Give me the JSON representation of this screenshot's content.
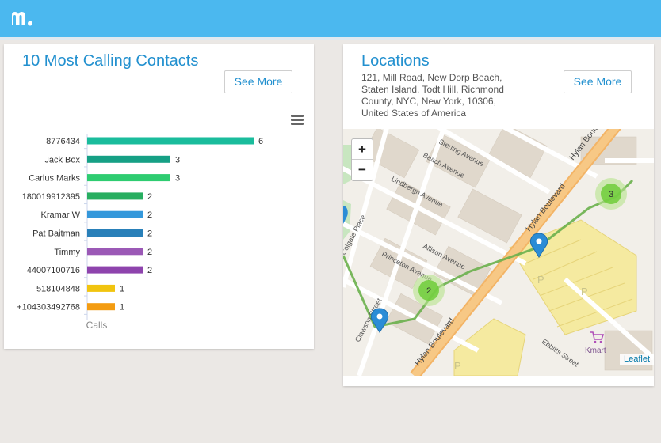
{
  "calls_card": {
    "title": "10 Most Calling Contacts",
    "see_more": "See More",
    "chart_data": {
      "type": "bar",
      "orientation": "horizontal",
      "categories": [
        "8776434",
        "Jack Box",
        "Carlus Marks",
        "180019912395",
        "Kramar W",
        "Pat Baitman",
        "Timmy",
        "44007100716",
        "518104848",
        "+104303492768"
      ],
      "values": [
        6,
        3,
        3,
        2,
        2,
        2,
        2,
        2,
        1,
        1
      ],
      "colors": [
        "#1abc9c",
        "#16a085",
        "#2ecc71",
        "#27ae60",
        "#3498db",
        "#2980b9",
        "#9b59b6",
        "#8e44ad",
        "#f1c40f",
        "#f39c12"
      ],
      "xlabel": "Calls",
      "xlim": [
        0,
        6
      ],
      "data_labels": true,
      "grid": false
    }
  },
  "locations_card": {
    "title": "Locations",
    "address": "121, Mill Road, New Dorp Beach, Staten Island, Todt Hill, Richmond County, NYC, New York, 10306, United States of America",
    "see_more": "See More",
    "map": {
      "zoom_in": "+",
      "zoom_out": "−",
      "attribution": "Leaflet",
      "street_labels": [
        "Sterling Avenue",
        "Clawson Street",
        "Hylan Boulevard",
        "Beach Avenue",
        "Lindbergh Avenue",
        "Colgate Place",
        "Princeton Avenue",
        "Allison Avenue",
        "Ebbitts Street",
        "Kmart"
      ],
      "clusters": [
        "3",
        "2"
      ],
      "parking_label": "P",
      "route_color": "#6ab04c",
      "marker_color": "#2b8cd6"
    }
  }
}
